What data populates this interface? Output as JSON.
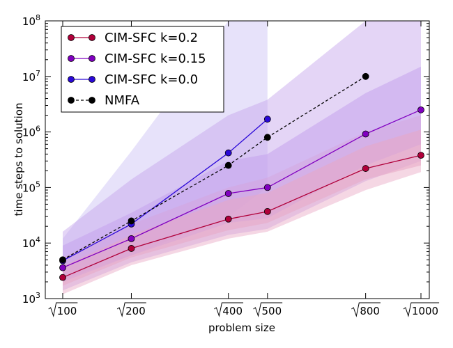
{
  "chart_data": {
    "type": "line",
    "title": "",
    "xlabel": "problem size",
    "ylabel": "time steps to solution",
    "yscale": "log",
    "xscale": "sqrt",
    "xlim": [
      100,
      1000
    ],
    "ylim": [
      1000,
      100000000
    ],
    "x": [
      100,
      200,
      400,
      500,
      800,
      1000
    ],
    "x_tick_labels": [
      "100",
      "200",
      "400",
      "500",
      "800",
      "1000"
    ],
    "y_tick_labels": [
      {
        "base": "10",
        "exp": "3"
      },
      {
        "base": "10",
        "exp": "4"
      },
      {
        "base": "10",
        "exp": "5"
      },
      {
        "base": "10",
        "exp": "6"
      },
      {
        "base": "10",
        "exp": "7"
      },
      {
        "base": "10",
        "exp": "8"
      }
    ],
    "legend_position": "top-left",
    "series": [
      {
        "name": "CIM-SFC k=0.2",
        "color": "#b0003a",
        "band_color": "#e8a7c4",
        "marker": "circle",
        "dashed": false,
        "x": [
          100,
          200,
          400,
          500,
          800,
          1000
        ],
        "values": [
          2400,
          8000,
          27000,
          37000,
          220000,
          380000
        ],
        "band_inner_low": [
          1700,
          5500,
          17000,
          23000,
          140000,
          250000
        ],
        "band_inner_high": [
          3800,
          14000,
          60000,
          80000,
          550000,
          1100000
        ],
        "band_outer_low": [
          1200,
          4000,
          12000,
          16000,
          90000,
          190000
        ],
        "band_outer_high": [
          5500,
          22000,
          100000,
          150000,
          1000000,
          2000000
        ]
      },
      {
        "name": "CIM-SFC k=0.15",
        "color": "#8000c0",
        "band_color": "#c4a2ec",
        "marker": "circle",
        "dashed": false,
        "x": [
          100,
          200,
          400,
          500,
          800,
          1000
        ],
        "values": [
          3600,
          12000,
          78000,
          100000,
          920000,
          2500000
        ],
        "band_inner_low": [
          2000,
          6000,
          23000,
          28000,
          250000,
          600000
        ],
        "band_inner_high": [
          9000,
          35000,
          300000,
          400000,
          5000000,
          15000000
        ],
        "band_outer_low": [
          1400,
          4500,
          14000,
          18000,
          130000,
          300000
        ],
        "band_outer_high": [
          16000,
          140000,
          2000000,
          3800000,
          100000000,
          100000000
        ]
      },
      {
        "name": "CIM-SFC k=0.0",
        "color": "#2a08d8",
        "band_color": "#cabff5",
        "marker": "circle",
        "dashed": false,
        "x": [
          100,
          200,
          400,
          500
        ],
        "values": [
          4800,
          22000,
          420000,
          1700000
        ],
        "band_outer_low": [
          2200,
          6000,
          30000,
          100000
        ],
        "band_outer_high": [
          12000,
          450000,
          100000000,
          100000000
        ]
      },
      {
        "name": "NMFA",
        "color": "#000000",
        "marker": "circle",
        "dashed": true,
        "x": [
          100,
          200,
          400,
          500,
          800
        ],
        "values": [
          5000,
          25000,
          250000,
          800000,
          10000000
        ]
      }
    ]
  }
}
